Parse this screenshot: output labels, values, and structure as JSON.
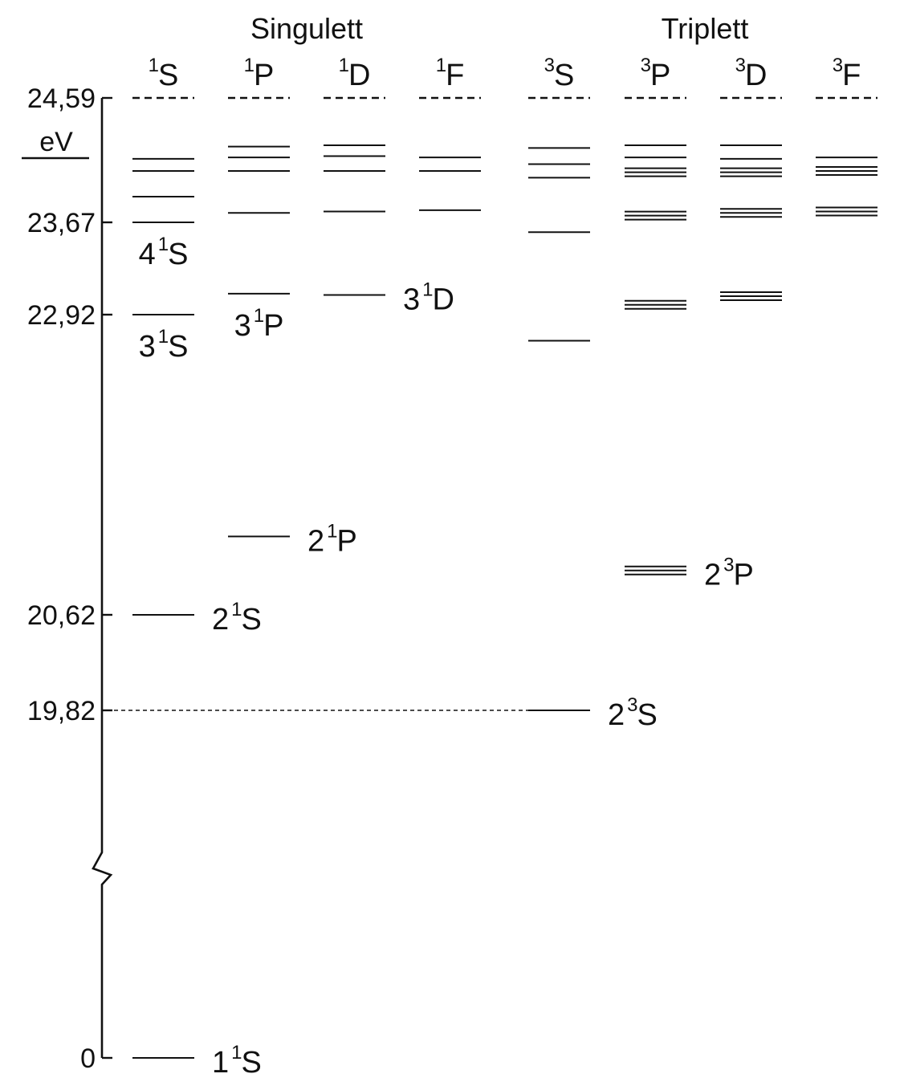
{
  "groups": [
    {
      "id": "singlet",
      "label": "Singulett"
    },
    {
      "id": "triplet",
      "label": "Triplett"
    }
  ],
  "columns": [
    {
      "id": "1S",
      "sup": "1",
      "letter": "S",
      "multiplicity": "singlet"
    },
    {
      "id": "1P",
      "sup": "1",
      "letter": "P",
      "multiplicity": "singlet"
    },
    {
      "id": "1D",
      "sup": "1",
      "letter": "D",
      "multiplicity": "singlet"
    },
    {
      "id": "1F",
      "sup": "1",
      "letter": "F",
      "multiplicity": "singlet"
    },
    {
      "id": "3S",
      "sup": "3",
      "letter": "S",
      "multiplicity": "triplet"
    },
    {
      "id": "3P",
      "sup": "3",
      "letter": "P",
      "multiplicity": "triplet"
    },
    {
      "id": "3D",
      "sup": "3",
      "letter": "D",
      "multiplicity": "triplet"
    },
    {
      "id": "3F",
      "sup": "3",
      "letter": "F",
      "multiplicity": "triplet"
    }
  ],
  "axis": {
    "unit": "eV",
    "ticks": [
      "24,59",
      "23,67",
      "22,92",
      "20,62",
      "19,82",
      "0"
    ],
    "break": true
  },
  "ionization_limit": "24,59",
  "levels": {
    "1S": [
      0,
      20.62,
      22.92,
      23.67,
      23.86,
      24.05,
      24.14
    ],
    "1P": [
      21.22,
      23.09,
      23.74,
      24.05,
      24.15,
      24.23
    ],
    "1D": [
      23.08,
      23.75,
      24.05,
      24.16,
      24.24
    ],
    "1F": [
      23.76,
      24.05,
      24.15
    ],
    "3S": [
      19.82,
      22.72,
      23.59,
      24.0,
      24.1,
      24.22
    ],
    "3P": [
      {
        "energy": 20.96,
        "fine": 3
      },
      {
        "energy": 23.0,
        "fine": 3
      },
      {
        "energy": 23.72,
        "fine": 3
      },
      {
        "energy": 24.04,
        "fine": 3
      },
      {
        "energy": 24.15,
        "fine": 1
      },
      {
        "energy": 24.24,
        "fine": 1
      }
    ],
    "3D": [
      {
        "energy": 23.07,
        "fine": 3
      },
      {
        "energy": 23.74,
        "fine": 3
      },
      {
        "energy": 24.04,
        "fine": 3
      },
      {
        "energy": 24.14,
        "fine": 1
      },
      {
        "energy": 24.24,
        "fine": 1
      }
    ],
    "3F": [
      {
        "energy": 23.75,
        "fine": 3
      },
      {
        "energy": 24.05,
        "fine": 3
      },
      {
        "energy": 24.15,
        "fine": 1
      }
    ]
  },
  "state_labels": [
    {
      "n": "4",
      "sup": "1",
      "letter": "S",
      "column": "1S",
      "energy": 23.67,
      "side": "below"
    },
    {
      "n": "3",
      "sup": "1",
      "letter": "S",
      "column": "1S",
      "energy": 22.92,
      "side": "below"
    },
    {
      "n": "3",
      "sup": "1",
      "letter": "P",
      "column": "1P",
      "energy": 23.09,
      "side": "below"
    },
    {
      "n": "3",
      "sup": "1",
      "letter": "D",
      "column": "1D",
      "energy": 23.08,
      "side": "right"
    },
    {
      "n": "2",
      "sup": "1",
      "letter": "P",
      "column": "1P",
      "energy": 21.22,
      "side": "right"
    },
    {
      "n": "2",
      "sup": "1",
      "letter": "S",
      "column": "1S",
      "energy": 20.62,
      "side": "right"
    },
    {
      "n": "2",
      "sup": "3",
      "letter": "P",
      "column": "3P",
      "energy": 20.96,
      "side": "right"
    },
    {
      "n": "2",
      "sup": "3",
      "letter": "S",
      "column": "3S",
      "energy": 19.82,
      "side": "right"
    },
    {
      "n": "1",
      "sup": "1",
      "letter": "S",
      "column": "1S",
      "energy": 0,
      "side": "right"
    }
  ]
}
